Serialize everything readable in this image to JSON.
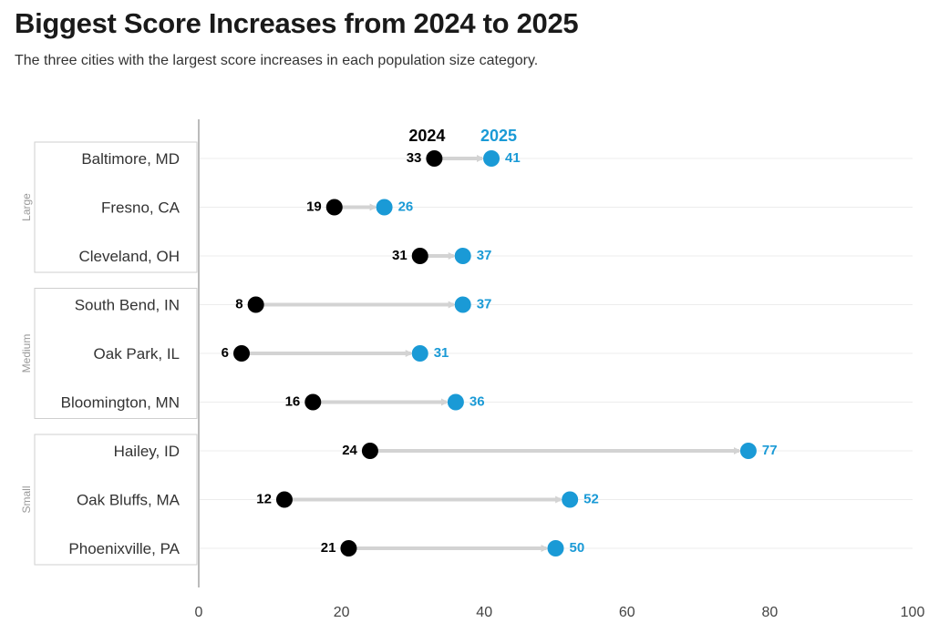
{
  "header": {
    "title": "Biggest Score Increases from 2024 to 2025",
    "subtitle": "The three cities with the largest score increases in each population size category."
  },
  "colors": {
    "y2024": "#000000",
    "y2025": "#1a9ad6",
    "arrow": "#d3d3d3",
    "grid": "#ececec",
    "axis": "#bbbbbb"
  },
  "chart_data": {
    "type": "dumbbell",
    "legend": [
      "2024",
      "2025"
    ],
    "xlim": [
      0,
      100
    ],
    "xticks": [
      "0",
      "20",
      "40",
      "60",
      "80",
      "100"
    ],
    "grid": true,
    "groups": [
      {
        "name": "Large",
        "cities": [
          "Baltimore, MD",
          "Fresno, CA",
          "Cleveland, OH"
        ]
      },
      {
        "name": "Medium",
        "cities": [
          "South Bend, IN",
          "Oak Park, IL",
          "Bloomington, MN"
        ]
      },
      {
        "name": "Small",
        "cities": [
          "Hailey, ID",
          "Oak Bluffs, MA",
          "Phoenixville, PA"
        ]
      }
    ],
    "categories": [
      "Baltimore, MD",
      "Fresno, CA",
      "Cleveland, OH",
      "South Bend, IN",
      "Oak Park, IL",
      "Bloomington, MN",
      "Hailey, ID",
      "Oak Bluffs, MA",
      "Phoenixville, PA"
    ],
    "series": [
      {
        "name": "2024",
        "values": [
          33,
          19,
          31,
          8,
          6,
          16,
          24,
          12,
          21
        ]
      },
      {
        "name": "2025",
        "values": [
          41,
          26,
          37,
          37,
          31,
          36,
          77,
          52,
          50
        ]
      }
    ]
  }
}
